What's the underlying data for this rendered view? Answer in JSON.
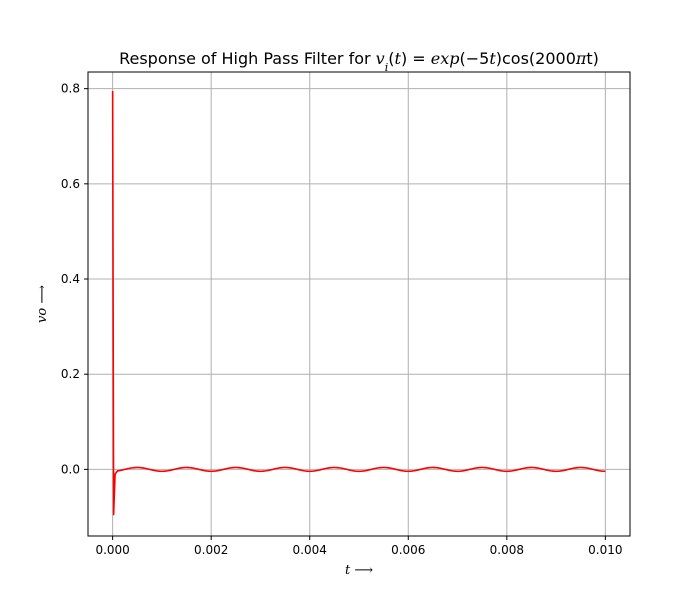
{
  "chart_data": {
    "type": "line",
    "title_prefix": "Response of High Pass Filter for ",
    "title_math": [
      {
        "t": "v",
        "i": true
      },
      {
        "t": "i",
        "i": true,
        "sub": true
      },
      {
        "t": "(",
        "i": false
      },
      {
        "t": "t",
        "i": true
      },
      {
        "t": ") = ",
        "i": false
      },
      {
        "t": "exp",
        "i": true
      },
      {
        "t": "(−5",
        "i": false
      },
      {
        "t": "t",
        "i": true
      },
      {
        "t": ")cos(2000",
        "i": false
      },
      {
        "t": "π",
        "i": true
      },
      {
        "t": "t)",
        "i": false
      }
    ],
    "xlabel": "t ⟶",
    "ylabel": "vo ⟶",
    "xlim": [
      -0.0005,
      0.0105
    ],
    "ylim": [
      -0.14,
      0.835
    ],
    "xticks": [
      0.0,
      0.002,
      0.004,
      0.006,
      0.008,
      0.01
    ],
    "xtick_labels": [
      "0.000",
      "0.002",
      "0.004",
      "0.006",
      "0.008",
      "0.010"
    ],
    "yticks": [
      0.0,
      0.2,
      0.4,
      0.6,
      0.8
    ],
    "ytick_labels": [
      "0.0",
      "0.2",
      "0.4",
      "0.6",
      "0.8"
    ],
    "grid": true,
    "series": [
      {
        "color": "#ff0000",
        "transient": [
          [
            0.0,
            0.795
          ],
          [
            2e-05,
            -0.095
          ],
          [
            5e-05,
            -0.01
          ],
          [
            0.0001,
            -0.003
          ]
        ],
        "steady": {
          "amplitude": 0.004,
          "frequency": 1000,
          "t_start": 0.0001,
          "t_end": 0.01
        }
      }
    ]
  }
}
